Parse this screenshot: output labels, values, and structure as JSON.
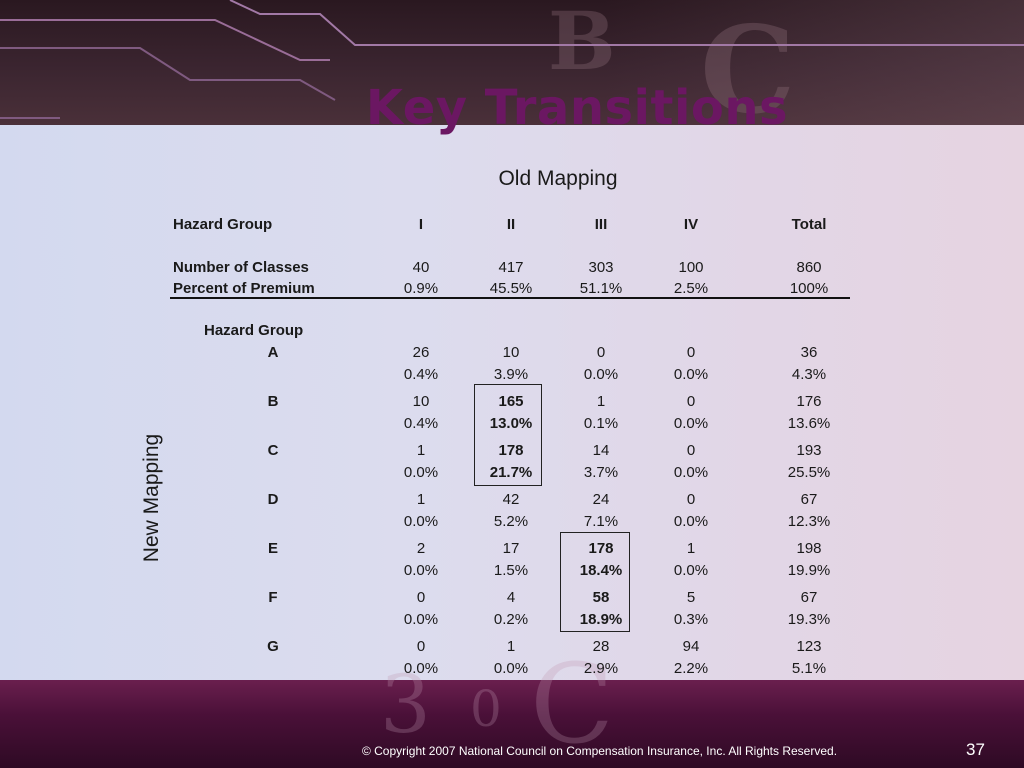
{
  "title": "Key Transitions",
  "old_mapping_label": "Old Mapping",
  "new_mapping_label": "New Mapping",
  "header": {
    "label": "Hazard Group",
    "columns": [
      "I",
      "II",
      "III",
      "IV",
      "Total"
    ]
  },
  "summary": [
    {
      "label": "Number of Classes",
      "values": [
        "40",
        "417",
        "303",
        "100",
        "860"
      ]
    },
    {
      "label": "Percent of Premium",
      "values": [
        "0.9%",
        "45.5%",
        "51.1%",
        "2.5%",
        "100%"
      ]
    }
  ],
  "new_hazard_group_label": "Hazard Group",
  "groups": [
    {
      "label": "A",
      "counts": [
        "26",
        "10",
        "0",
        "0",
        "36"
      ],
      "pcts": [
        "0.4%",
        "3.9%",
        "0.0%",
        "0.0%",
        "4.3%"
      ]
    },
    {
      "label": "B",
      "counts": [
        "10",
        "165",
        "1",
        "0",
        "176"
      ],
      "pcts": [
        "0.4%",
        "13.0%",
        "0.1%",
        "0.0%",
        "13.6%"
      ]
    },
    {
      "label": "C",
      "counts": [
        "1",
        "178",
        "14",
        "0",
        "193"
      ],
      "pcts": [
        "0.0%",
        "21.7%",
        "3.7%",
        "0.0%",
        "25.5%"
      ]
    },
    {
      "label": "D",
      "counts": [
        "1",
        "42",
        "24",
        "0",
        "67"
      ],
      "pcts": [
        "0.0%",
        "5.2%",
        "7.1%",
        "0.0%",
        "12.3%"
      ]
    },
    {
      "label": "E",
      "counts": [
        "2",
        "17",
        "178",
        "1",
        "198"
      ],
      "pcts": [
        "0.0%",
        "1.5%",
        "18.4%",
        "0.0%",
        "19.9%"
      ]
    },
    {
      "label": "F",
      "counts": [
        "0",
        "4",
        "58",
        "5",
        "67"
      ],
      "pcts": [
        "0.0%",
        "0.2%",
        "18.9%",
        "0.3%",
        "19.3%"
      ]
    },
    {
      "label": "G",
      "counts": [
        "0",
        "1",
        "28",
        "94",
        "123"
      ],
      "pcts": [
        "0.0%",
        "0.0%",
        "2.9%",
        "2.2%",
        "5.1%"
      ]
    }
  ],
  "highlighted_cells": [
    {
      "group": "B",
      "column": "II"
    },
    {
      "group": "C",
      "column": "II"
    },
    {
      "group": "E",
      "column": "III"
    },
    {
      "group": "F",
      "column": "III"
    }
  ],
  "footer": "© Copyright 2007 National Council on Compensation Insurance, Inc. All Rights  Reserved.",
  "page_number": "37",
  "colors": {
    "title": "#6b1762",
    "band_top": "#3b2530",
    "band_bottom": "#4a1038"
  }
}
